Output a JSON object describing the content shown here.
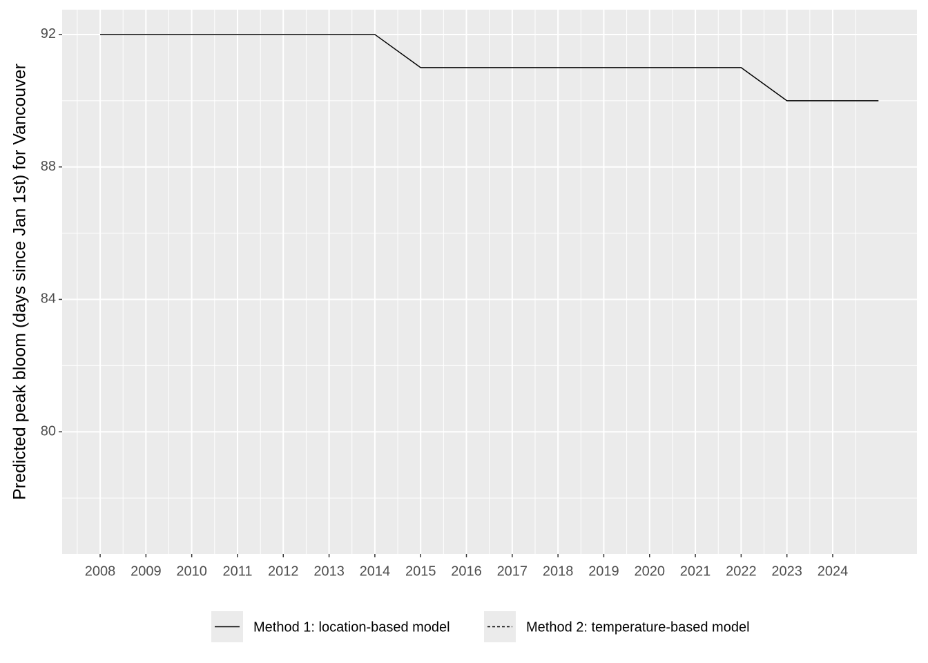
{
  "chart_data": {
    "type": "line",
    "y_label": "Predicted peak bloom (days since Jan 1st) for Vancouver",
    "x": [
      2008,
      2009,
      2010,
      2011,
      2012,
      2013,
      2014,
      2015,
      2016,
      2017,
      2018,
      2019,
      2020,
      2021,
      2022,
      2023,
      2024,
      2025
    ],
    "series": [
      {
        "name": "Method 1: location-based model",
        "color": "#000000",
        "linestyle": "solid",
        "values": [
          92,
          92,
          92,
          92,
          92,
          92,
          92,
          91,
          91,
          91,
          91,
          91,
          91,
          91,
          91,
          90,
          90,
          90
        ]
      },
      {
        "name": "Method 2: temperature-based model",
        "color": "#000000",
        "linestyle": "dashed",
        "values": [
          null,
          null,
          null,
          null,
          null,
          null,
          null,
          null,
          null,
          null,
          null,
          null,
          null,
          null,
          null,
          null,
          null,
          null
        ]
      }
    ],
    "xlim": [
      2007.17,
      2025.84
    ],
    "xticks": [
      2008,
      2009,
      2010,
      2011,
      2012,
      2013,
      2014,
      2015,
      2016,
      2017,
      2018,
      2019,
      2020,
      2021,
      2022,
      2023,
      2024
    ],
    "ylim": [
      76.3125,
      92.75
    ],
    "yticks": [
      80,
      84,
      88,
      92
    ],
    "grid": true,
    "legend_position": "bottom"
  }
}
